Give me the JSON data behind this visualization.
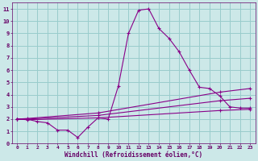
{
  "background_color": "#cce8e8",
  "line_color": "#880088",
  "grid_color": "#99cccc",
  "xlabel": "Windchill (Refroidissement éolien,°C)",
  "xlabel_color": "#660066",
  "tick_color": "#660066",
  "xlim": [
    -0.5,
    23.5
  ],
  "ylim": [
    0,
    11.5
  ],
  "xticks": [
    0,
    1,
    2,
    3,
    4,
    5,
    6,
    7,
    8,
    9,
    10,
    11,
    12,
    13,
    14,
    15,
    16,
    17,
    18,
    19,
    20,
    21,
    22,
    23
  ],
  "yticks": [
    0,
    1,
    2,
    3,
    4,
    5,
    6,
    7,
    8,
    9,
    10,
    11
  ],
  "line1_x": [
    0,
    1,
    2,
    3,
    4,
    5,
    6,
    7,
    8,
    9,
    10,
    11,
    12,
    13,
    14,
    15,
    16,
    17,
    18,
    19,
    20,
    21,
    22,
    23
  ],
  "line1_y": [
    2.0,
    2.0,
    1.8,
    1.7,
    1.1,
    1.1,
    0.5,
    1.35,
    2.1,
    2.0,
    4.7,
    9.0,
    10.9,
    11.0,
    9.4,
    8.6,
    7.5,
    6.0,
    4.6,
    4.5,
    3.9,
    3.0,
    2.9,
    2.9
  ],
  "line2_x": [
    0,
    1,
    8,
    20,
    23
  ],
  "line2_y": [
    2.0,
    2.05,
    2.5,
    4.2,
    4.5
  ],
  "line3_x": [
    0,
    1,
    8,
    20,
    23
  ],
  "line3_y": [
    2.0,
    2.0,
    2.3,
    3.5,
    3.7
  ],
  "line4_x": [
    0,
    1,
    8,
    20,
    23
  ],
  "line4_y": [
    2.0,
    1.95,
    2.1,
    2.7,
    2.8
  ]
}
